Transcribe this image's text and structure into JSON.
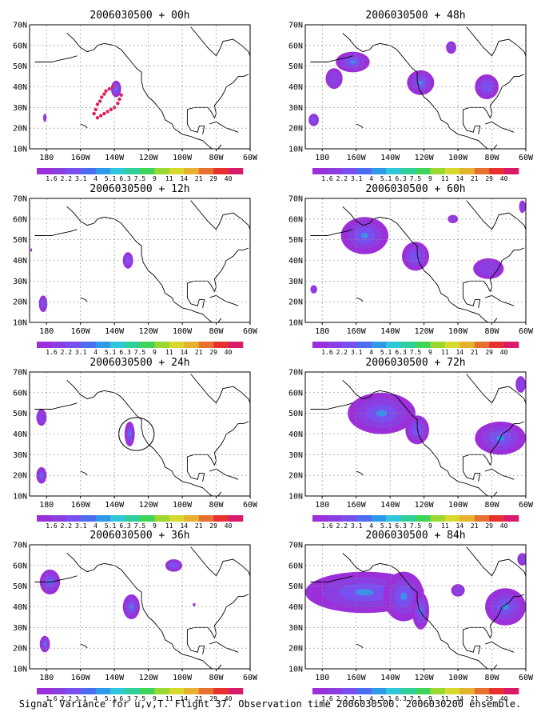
{
  "figure": {
    "caption": "Signal Variance for u,v,T. Flight 37. Observation time 2006030500. 2006030200 ensemble."
  },
  "colorbar": {
    "labels": [
      "1.6",
      "2.2",
      "3.1",
      "4",
      "5.1",
      "6.3",
      "7.5",
      "9",
      "11",
      "14",
      "21",
      "29",
      "40"
    ],
    "colors": [
      "#9b2fd9",
      "#8b3fe0",
      "#7a4ff0",
      "#4e6cf0",
      "#2e9ae8",
      "#2fc7d9",
      "#2fcf9a",
      "#3fd45a",
      "#9ad82f",
      "#d8d82f",
      "#e8b02f",
      "#e8702f",
      "#e83030",
      "#d81c6a"
    ]
  },
  "axes": {
    "x_ticks": [
      "180",
      "160W",
      "140W",
      "120W",
      "100W",
      "80W",
      "60W"
    ],
    "y_ticks": [
      "10N",
      "20N",
      "30N",
      "40N",
      "50N",
      "60N",
      "70N"
    ]
  },
  "chart_data": [
    {
      "type": "heatmap",
      "title": "2006030500 + 00h",
      "xlim": [
        -190,
        -60
      ],
      "ylim": [
        10,
        70
      ],
      "blobs": [
        {
          "lon": -139,
          "lat": 39,
          "rx": 3,
          "ry": 4,
          "level": 3
        },
        {
          "lon": -181,
          "lat": 25,
          "rx": 1,
          "ry": 2,
          "level": 1
        }
      ],
      "dots": [
        [
          -141,
          40
        ],
        [
          -143,
          39
        ],
        [
          -145,
          38
        ],
        [
          -146,
          36.5
        ],
        [
          -147.5,
          35
        ],
        [
          -148.5,
          33
        ],
        [
          -150,
          31.5
        ],
        [
          -151,
          29
        ],
        [
          -152,
          27
        ],
        [
          -136,
          36
        ],
        [
          -137,
          34
        ],
        [
          -138,
          32
        ],
        [
          -140,
          30
        ],
        [
          -142,
          29
        ],
        [
          -144,
          28
        ],
        [
          -146,
          27
        ],
        [
          -148,
          26
        ],
        [
          -150,
          25
        ]
      ]
    },
    {
      "type": "heatmap",
      "title": "2006030500 + 48h",
      "xlim": [
        -190,
        -60
      ],
      "ylim": [
        10,
        70
      ],
      "blobs": [
        {
          "lon": -162,
          "lat": 52,
          "rx": 10,
          "ry": 5,
          "level": 3
        },
        {
          "lon": -173,
          "lat": 44,
          "rx": 5,
          "ry": 5,
          "level": 1
        },
        {
          "lon": -122,
          "lat": 42,
          "rx": 8,
          "ry": 6,
          "level": 3
        },
        {
          "lon": -104,
          "lat": 59,
          "rx": 3,
          "ry": 3,
          "level": 1
        },
        {
          "lon": -83,
          "lat": 40,
          "rx": 7,
          "ry": 6,
          "level": 2
        },
        {
          "lon": -185,
          "lat": 24,
          "rx": 3,
          "ry": 3,
          "level": 2
        }
      ],
      "dots": []
    },
    {
      "type": "heatmap",
      "title": "2006030500 + 12h",
      "xlim": [
        -190,
        -60
      ],
      "ylim": [
        10,
        70
      ],
      "blobs": [
        {
          "lon": -132,
          "lat": 40,
          "rx": 3,
          "ry": 4,
          "level": 2
        },
        {
          "lon": -182,
          "lat": 19,
          "rx": 2.5,
          "ry": 4,
          "level": 2
        },
        {
          "lon": -189,
          "lat": 45,
          "rx": 0.5,
          "ry": 0.8,
          "level": 1
        }
      ],
      "dots": []
    },
    {
      "type": "heatmap",
      "title": "2006030500 + 60h",
      "xlim": [
        -190,
        -60
      ],
      "ylim": [
        10,
        70
      ],
      "blobs": [
        {
          "lon": -155,
          "lat": 52,
          "rx": 14,
          "ry": 9,
          "level": 3
        },
        {
          "lon": -125,
          "lat": 42,
          "rx": 8,
          "ry": 7,
          "level": 2
        },
        {
          "lon": -103,
          "lat": 60,
          "rx": 3,
          "ry": 2,
          "level": 1
        },
        {
          "lon": -82,
          "lat": 36,
          "rx": 9,
          "ry": 5,
          "level": 1
        },
        {
          "lon": -185,
          "lat": 26,
          "rx": 2,
          "ry": 2,
          "level": 1
        },
        {
          "lon": -62,
          "lat": 66,
          "rx": 2,
          "ry": 3,
          "level": 1
        }
      ],
      "dots": []
    },
    {
      "type": "heatmap",
      "title": "2006030500 + 24h",
      "xlim": [
        -190,
        -60
      ],
      "ylim": [
        10,
        70
      ],
      "blobs": [
        {
          "lon": -131,
          "lat": 40,
          "rx": 3,
          "ry": 6,
          "level": 3
        },
        {
          "lon": -183,
          "lat": 48,
          "rx": 3,
          "ry": 4,
          "level": 1
        },
        {
          "lon": -183,
          "lat": 20,
          "rx": 3,
          "ry": 4,
          "level": 3
        }
      ],
      "dots": [],
      "circle": {
        "lon": -127,
        "lat": 40,
        "r": 8
      }
    },
    {
      "type": "heatmap",
      "title": "2006030500 + 72h",
      "xlim": [
        -190,
        -60
      ],
      "ylim": [
        10,
        70
      ],
      "blobs": [
        {
          "lon": -145,
          "lat": 50,
          "rx": 20,
          "ry": 10,
          "level": 3
        },
        {
          "lon": -124,
          "lat": 42,
          "rx": 7,
          "ry": 7,
          "level": 2
        },
        {
          "lon": -75,
          "lat": 38,
          "rx": 15,
          "ry": 8,
          "level": 3
        },
        {
          "lon": -63,
          "lat": 64,
          "rx": 3,
          "ry": 4,
          "level": 1
        }
      ],
      "dots": []
    },
    {
      "type": "heatmap",
      "title": "2006030500 + 36h",
      "xlim": [
        -190,
        -60
      ],
      "ylim": [
        10,
        70
      ],
      "blobs": [
        {
          "lon": -178,
          "lat": 52,
          "rx": 6,
          "ry": 6,
          "level": 3
        },
        {
          "lon": -181,
          "lat": 22,
          "rx": 3,
          "ry": 4,
          "level": 3
        },
        {
          "lon": -130,
          "lat": 40,
          "rx": 5,
          "ry": 6,
          "level": 3
        },
        {
          "lon": -105,
          "lat": 60,
          "rx": 5,
          "ry": 3,
          "level": 2
        },
        {
          "lon": -93,
          "lat": 41,
          "rx": 0.8,
          "ry": 0.8,
          "level": 1
        }
      ],
      "dots": []
    },
    {
      "type": "heatmap",
      "title": "2006030500 + 84h",
      "xlim": [
        -190,
        -60
      ],
      "ylim": [
        10,
        70
      ],
      "blobs": [
        {
          "lon": -155,
          "lat": 47,
          "rx": 35,
          "ry": 10,
          "level": 3
        },
        {
          "lon": -132,
          "lat": 45,
          "rx": 12,
          "ry": 12,
          "level": 3
        },
        {
          "lon": -122,
          "lat": 38,
          "rx": 5,
          "ry": 9,
          "level": 3
        },
        {
          "lon": -72,
          "lat": 40,
          "rx": 12,
          "ry": 9,
          "level": 3
        },
        {
          "lon": -62,
          "lat": 63,
          "rx": 3,
          "ry": 3,
          "level": 1
        },
        {
          "lon": -100,
          "lat": 48,
          "rx": 4,
          "ry": 3,
          "level": 1
        }
      ],
      "dots": []
    }
  ]
}
